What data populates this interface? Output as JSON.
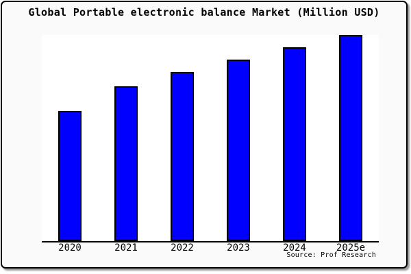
{
  "header": {
    "title": "Global Portable electronic balance Market (Million USD)"
  },
  "footer": {
    "source": "Source: Prof Research"
  },
  "colors": {
    "bar_fill": "#0000ff",
    "bar_border": "#000000",
    "frame_background": "#fafafa",
    "plot_background": "#ffffff",
    "axis": "#000000"
  },
  "chart_data": {
    "type": "bar",
    "title": "Global Portable electronic balance Market (Million USD)",
    "categories": [
      "2020",
      "2021",
      "2022",
      "2023",
      "2024",
      "2025e"
    ],
    "values": [
      63,
      75,
      82,
      88,
      94,
      100
    ],
    "value_units": "relative index estimated from bar heights (no y-axis ticks shown; 2025e bar = 100)",
    "xlabel": "",
    "ylabel": "",
    "ylim": [
      0,
      100
    ],
    "grid": false,
    "legend": false,
    "bar_color": "#0000ff",
    "source": "Source: Prof Research"
  }
}
